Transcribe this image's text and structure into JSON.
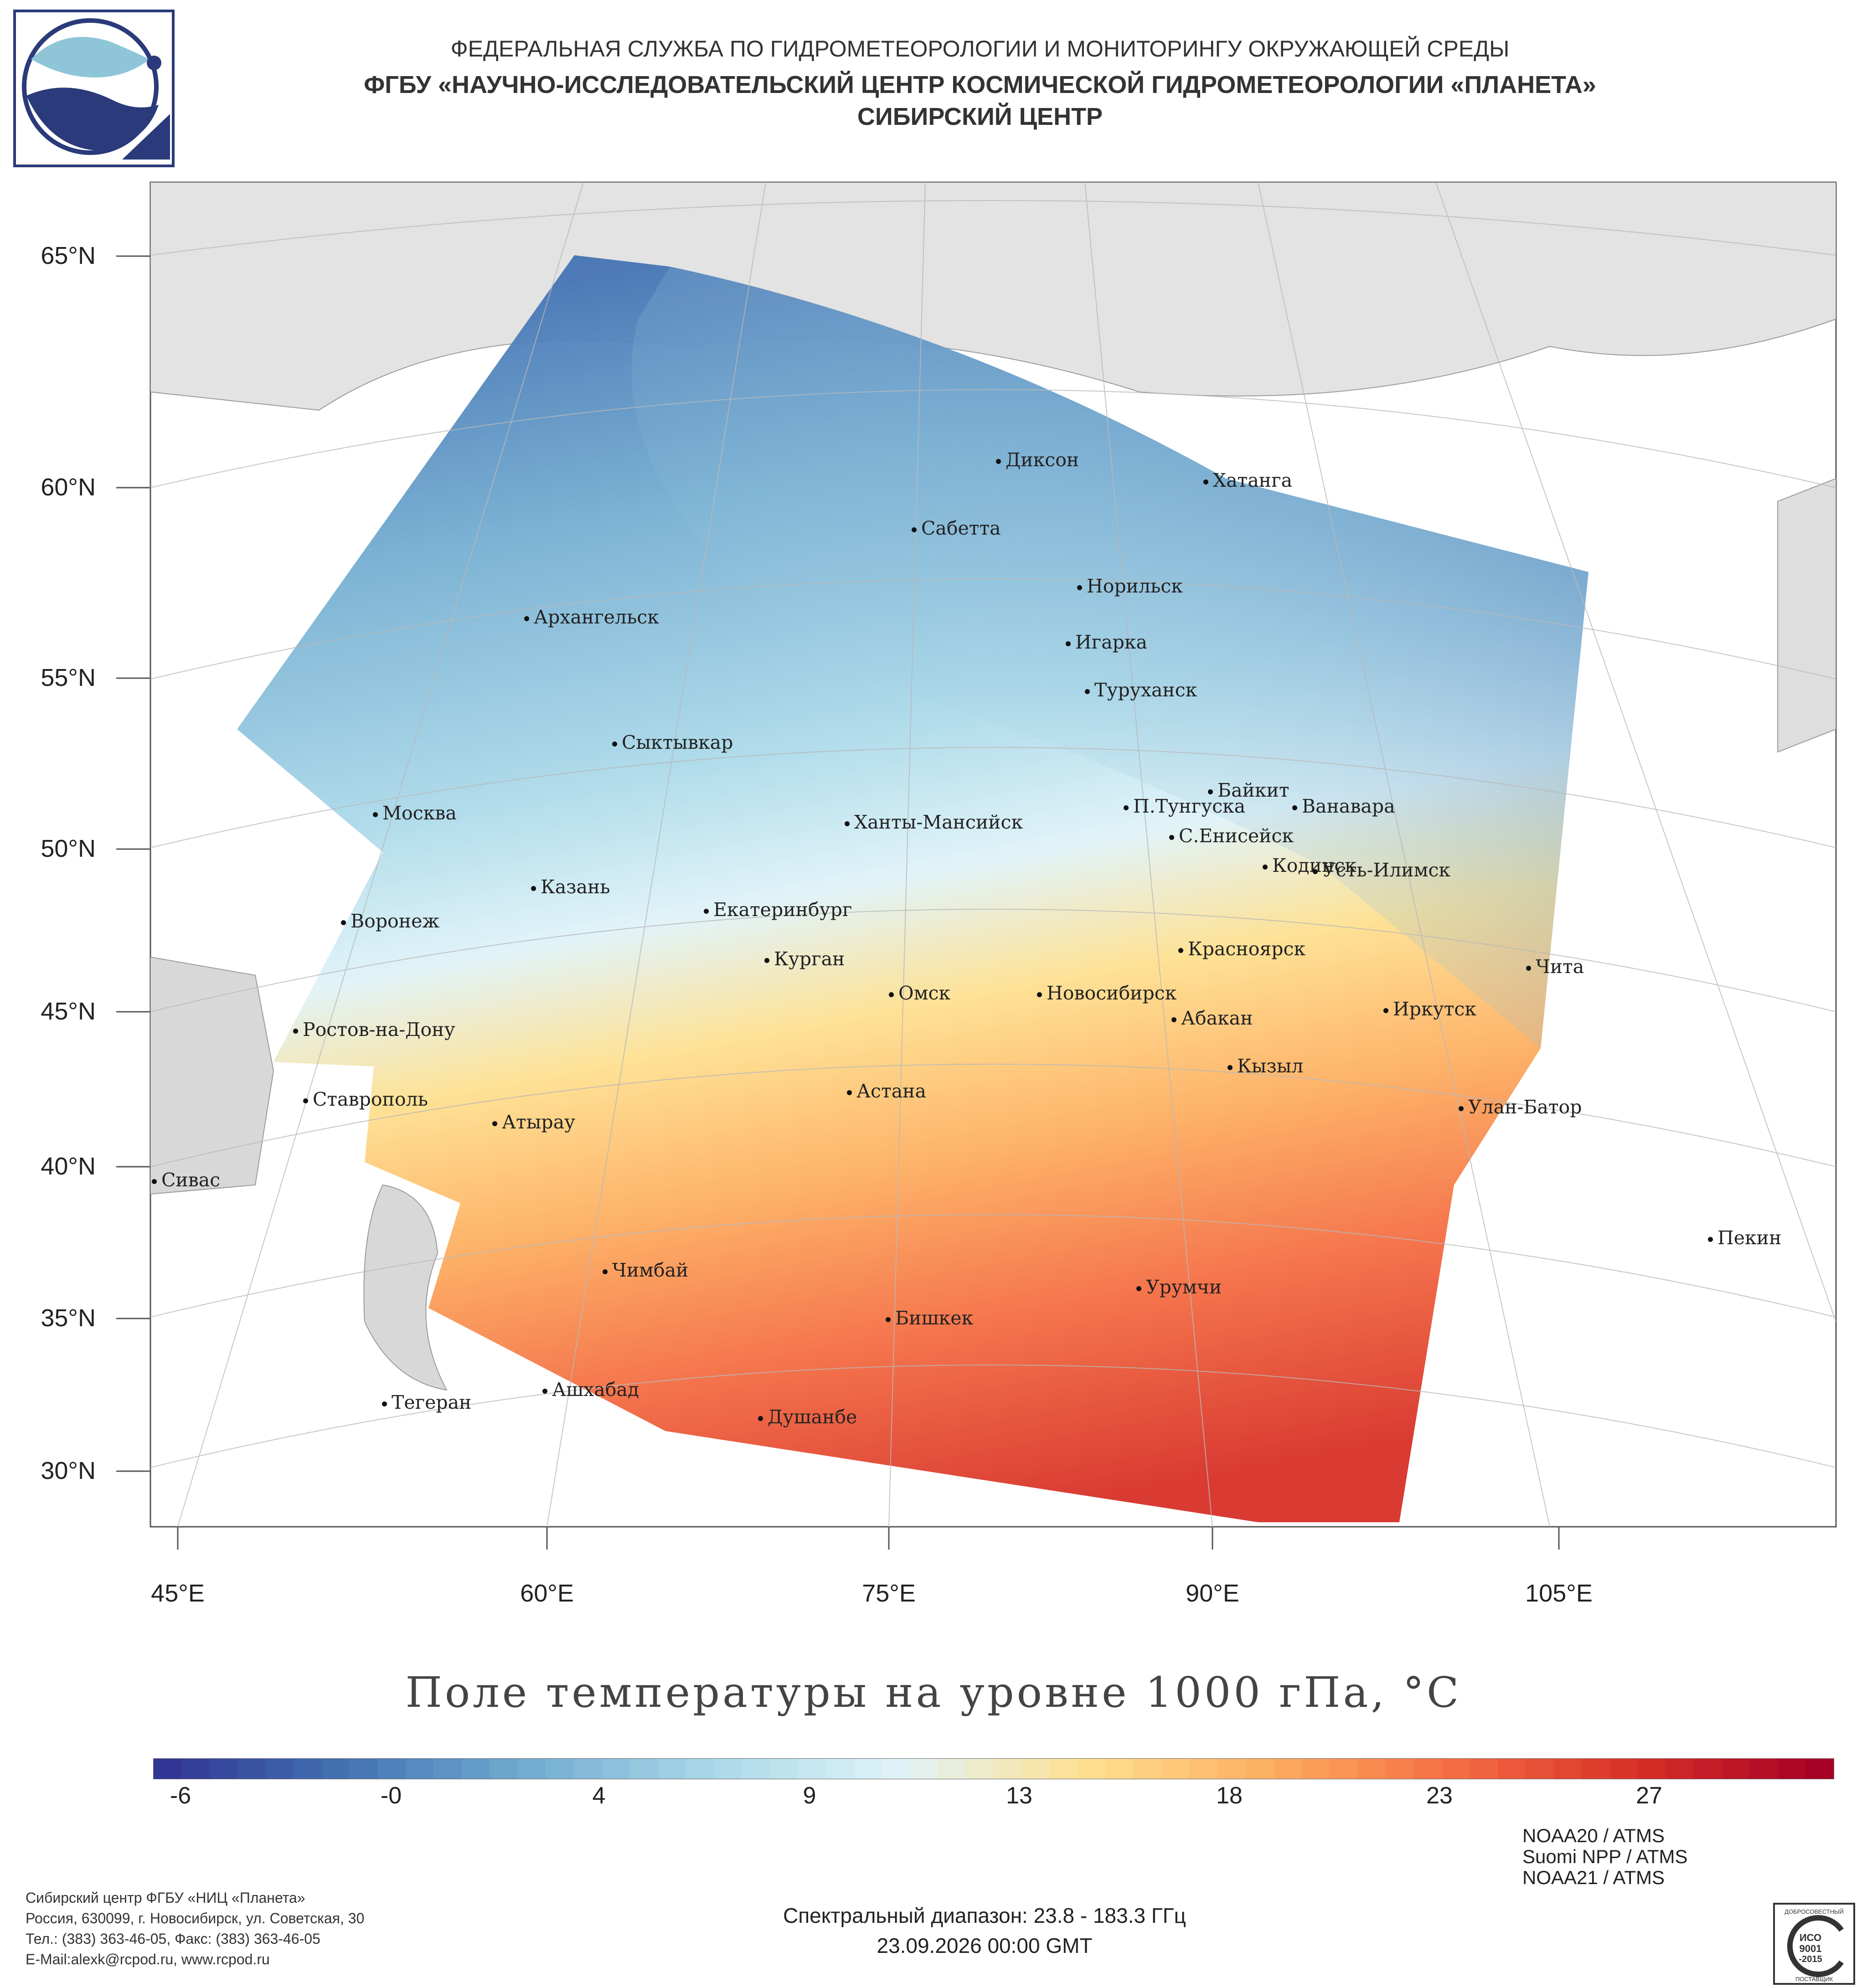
{
  "header": {
    "line1": "ФЕДЕРАЛЬНАЯ СЛУЖБА ПО ГИДРОМЕТЕОРОЛОГИИ И МОНИТОРИНГУ ОКРУЖАЮЩЕЙ СРЕДЫ",
    "line2": "ФГБУ «НАУЧНО-ИССЛЕДОВАТЕЛЬСКИЙ ЦЕНТР КОСМИЧЕСКОЙ ГИДРОМЕТЕОРОЛОГИИ «ПЛАНЕТА»",
    "line3": "СИБИРСКИЙ ЦЕНТР"
  },
  "logo_icon": "planeta-logo-icon",
  "map": {
    "lat_labels": [
      "65°N",
      "60°N",
      "55°N",
      "50°N",
      "45°N",
      "40°N",
      "35°N",
      "30°N"
    ],
    "lon_labels": [
      "45°E",
      "60°E",
      "75°E",
      "90°E",
      "105°E"
    ],
    "cities": [
      "Диксон",
      "Хатанга",
      "Сабетта",
      "Норильск",
      "Архангельск",
      "Игарка",
      "Туруханск",
      "Сыктывкар",
      "Байкит",
      "П.Тунгуска",
      "Ванавара",
      "Москва",
      "Ханты-Мансийск",
      "С.Енисейск",
      "Кодинск",
      "Усть-Илимск",
      "Казань",
      "Екатеринбург",
      "Воронеж",
      "Красноярск",
      "Курган",
      "Чита",
      "Омск",
      "Новосибирск",
      "Иркутск",
      "Абакан",
      "Ростов-на-Дону",
      "Кызыл",
      "Астана",
      "Ставрополь",
      "Улан-Батор",
      "Атырау",
      "Сивас",
      "Пекин",
      "Чимбай",
      "Урумчи",
      "Бишкек",
      "Ашхабад",
      "Тегеран",
      "Душанбе"
    ]
  },
  "colorbar": {
    "title": "Поле температуры на уровне 1000 гПа, °C",
    "ticks": [
      "-6",
      "-0",
      "4",
      "9",
      "13",
      "18",
      "23",
      "27"
    ],
    "colors": [
      "#313695",
      "#4575b4",
      "#74add1",
      "#abd9e9",
      "#e0f3f8",
      "#fee090",
      "#fdae61",
      "#f46d43",
      "#d73027",
      "#a50026"
    ]
  },
  "footer": {
    "org": "Сибирский центр ФГБУ «НИЦ «Планета»",
    "address": "Россия, 630099, г. Новосибирск, ул. Советская, 30",
    "phone": "Тел.: (383) 363-46-05, Факс: (383) 363-46-05",
    "email": "E-Mail:alexk@rcpod.ru, www.rcpod.ru",
    "satellites": [
      "NOAA20 / ATMS",
      "Suomi NPP / ATMS",
      "NOAA21 / ATMS"
    ],
    "spectral": "Спектральный диапазон: 23.8 - 183.3 ГГц",
    "datetime": "23.09.2026 00:00 GMT",
    "badge_line1": "ДОБРОСОВЕСТНЫЙ",
    "badge_line2": "ИСО",
    "badge_line3": "9001",
    "badge_line4": "-2015",
    "badge_line5": "ПОСТАВЩИК"
  }
}
